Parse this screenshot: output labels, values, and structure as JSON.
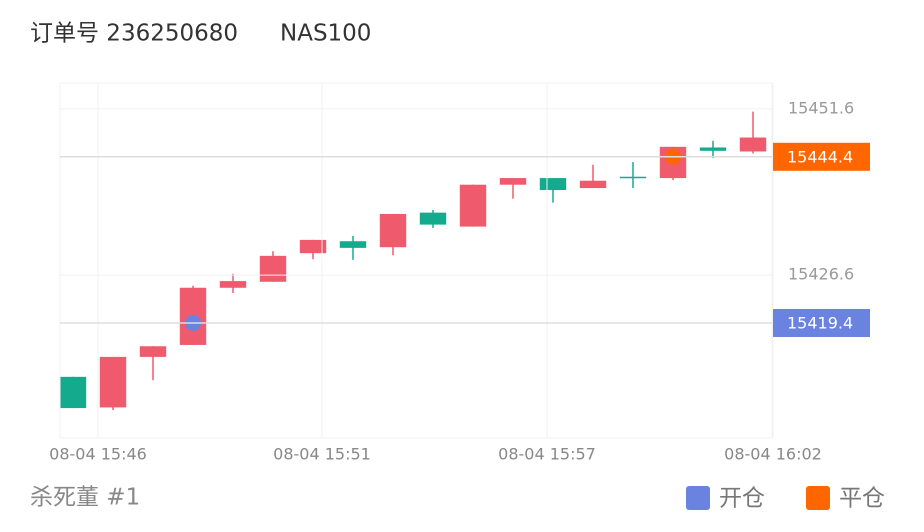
{
  "chart_data": {
    "type": "candlestick",
    "title": "订单号 236250680",
    "subtitle": "NAS100",
    "footer": "杀死董 #1",
    "up_color": "#ef5a6c",
    "down_color": "#14aa8e",
    "open": [
      15411.3,
      15406.7,
      15414.3,
      15416.1,
      15424.7,
      15425.6,
      15429.9,
      15431.7,
      15430.8,
      15436.0,
      15433.9,
      15440.2,
      15441.2,
      15439.7,
      15441.4,
      15441.2,
      15445.8,
      15445.2
    ],
    "high": [
      15411.3,
      15414.3,
      15415.9,
      15425.0,
      15426.8,
      15430.2,
      15431.9,
      15432.5,
      15435.8,
      15436.4,
      15440.2,
      15441.2,
      15441.2,
      15443.2,
      15443.6,
      15445.9,
      15446.8,
      15451.2
    ],
    "low": [
      15406.6,
      15406.3,
      15410.8,
      15416.1,
      15423.9,
      15425.6,
      15429.0,
      15428.9,
      15429.6,
      15433.7,
      15433.9,
      15438.1,
      15437.5,
      15439.7,
      15439.7,
      15440.9,
      15444.2,
      15444.9
    ],
    "close": [
      15406.6,
      15414.3,
      15415.9,
      15424.7,
      15425.7,
      15429.5,
      15431.9,
      15430.7,
      15435.8,
      15434.2,
      15440.2,
      15441.2,
      15439.4,
      15440.8,
      15441.3,
      15445.9,
      15445.3,
      15447.3
    ],
    "markers": [
      {
        "name": "开仓",
        "color": "#6b83e0",
        "index": 3,
        "value": 15419.4
      },
      {
        "name": "平仓",
        "color": "#ff6600",
        "index": 15,
        "value": 15444.4
      }
    ],
    "xlim": [
      -0.325,
      17.475
    ],
    "xticks": [
      {
        "value": 0.625,
        "label": "08-04 15:46"
      },
      {
        "value": 6.225,
        "label": "08-04 15:51"
      },
      {
        "value": 11.85,
        "label": "08-04 15:57"
      },
      {
        "value": 17.5,
        "label": "08-04 16:02"
      }
    ],
    "ylim": [
      15402.1,
      15455.5
    ],
    "yticks": [
      15451.6,
      15426.6
    ],
    "grid": true
  }
}
